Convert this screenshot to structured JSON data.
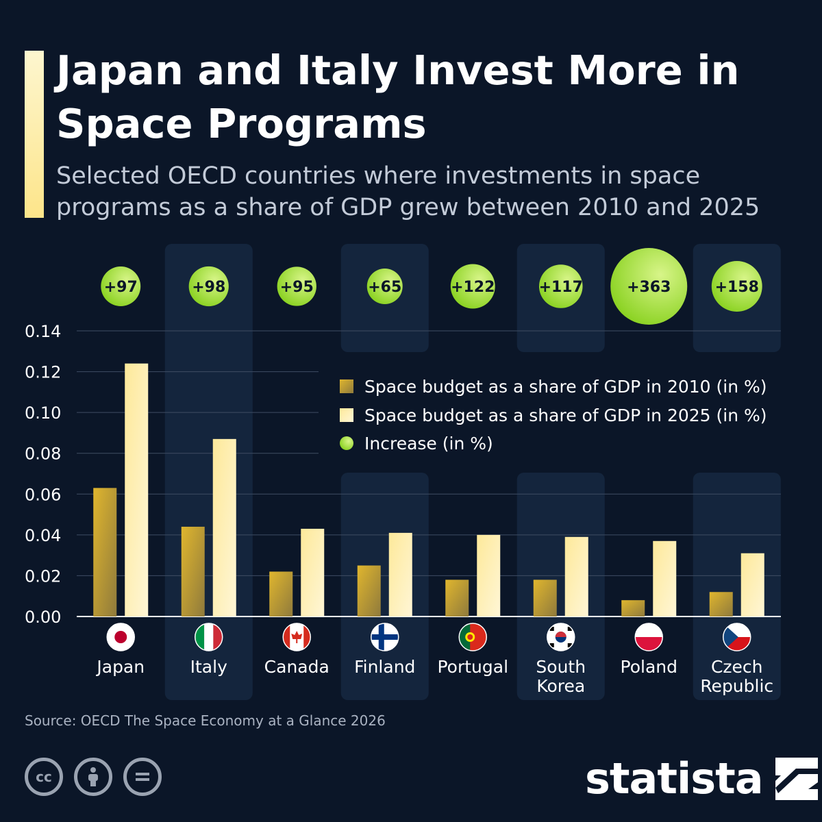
{
  "header": {
    "title": "Japan and Italy Invest More in Space Programs",
    "subtitle": "Selected OECD countries where investments in space programs as a share of GDP grew between 2010 and 2025"
  },
  "footer": {
    "source": "Source: OECD The Space Economy at a Glance 2026",
    "brand": "statista",
    "license_icons": [
      "cc-icon",
      "by-icon",
      "nd-icon"
    ]
  },
  "colors": {
    "background": "#0b1628",
    "column_highlight": "#14253d",
    "bar_2010": "#d4aa2c",
    "bar_2025": "#fde99a",
    "bubble": "#a4e23a",
    "accent": "#fde58a"
  },
  "chart_data": {
    "type": "bar",
    "categories": [
      "Japan",
      "Italy",
      "Canada",
      "Finland",
      "Portugal",
      "South Korea",
      "Poland",
      "Czech Republic"
    ],
    "series": [
      {
        "name": "Space budget as a share of GDP in 2010 (in %)",
        "values": [
          0.063,
          0.044,
          0.022,
          0.025,
          0.018,
          0.018,
          0.008,
          0.012
        ]
      },
      {
        "name": "Space budget as a share of GDP in 2025 (in %)",
        "values": [
          0.124,
          0.087,
          0.043,
          0.041,
          0.04,
          0.039,
          0.037,
          0.031
        ]
      }
    ],
    "increase": {
      "name": "Increase (in %)",
      "values": [
        97,
        98,
        95,
        65,
        122,
        117,
        363,
        158
      ],
      "labels": [
        "+97",
        "+98",
        "+95",
        "+65",
        "+122",
        "+117",
        "+363",
        "+158"
      ]
    },
    "flags": [
      "japan-flag-icon",
      "italy-flag-icon",
      "canada-flag-icon",
      "finland-flag-icon",
      "portugal-flag-icon",
      "south-korea-flag-icon",
      "poland-flag-icon",
      "czech-republic-flag-icon"
    ],
    "category_lines": [
      [
        "Japan"
      ],
      [
        "Italy"
      ],
      [
        "Canada"
      ],
      [
        "Finland"
      ],
      [
        "Portugal"
      ],
      [
        "South",
        "Korea"
      ],
      [
        "Poland"
      ],
      [
        "Czech",
        "Republic"
      ]
    ],
    "yticks": [
      "0.00",
      "0.02",
      "0.04",
      "0.06",
      "0.08",
      "0.10",
      "0.12",
      "0.14"
    ],
    "ylim": [
      0,
      0.14
    ],
    "xlabel": "",
    "ylabel": "",
    "grid": true,
    "legend_position": "top-right"
  }
}
